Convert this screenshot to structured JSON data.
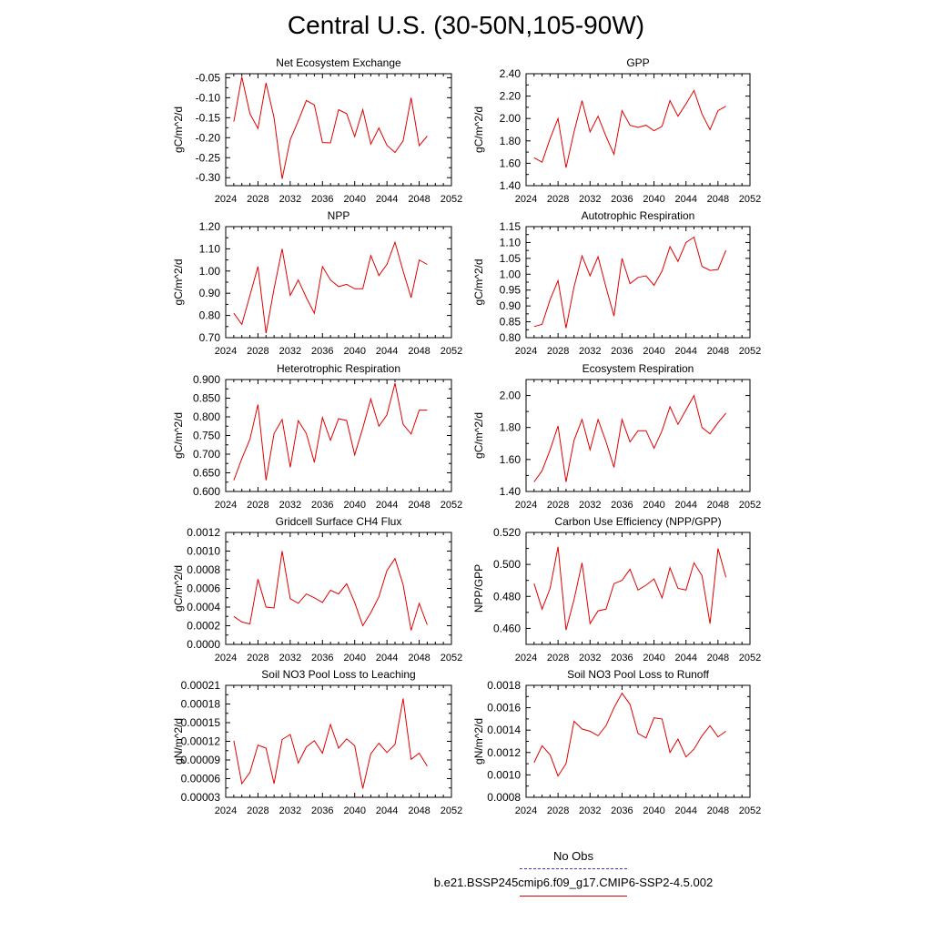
{
  "title": "Central U.S. (30-50N,105-90W)",
  "legend": {
    "obs_label": "No Obs",
    "obs_color": "#3b3bd6",
    "case_label": "b.e21.BSSP245cmip6.f09_g17.CMIP6-SSP2-4.5.002",
    "case_color": "#e00000"
  },
  "chart_data": [
    {
      "type": "line",
      "title": "Net Ecosystem Exchange",
      "ylabel": "gC/m^2/d",
      "xlim": [
        2024,
        2052
      ],
      "xticks": [
        "2024",
        "2028",
        "2032",
        "2036",
        "2040",
        "2044",
        "2048",
        "2052"
      ],
      "ylim": [
        -0.32,
        -0.04
      ],
      "yticks": [
        "-0.05",
        "-0.10",
        "-0.15",
        "-0.20",
        "-0.25",
        "-0.30"
      ],
      "series": [
        {
          "x": [
            2025,
            2026,
            2027,
            2028,
            2029,
            2030,
            2031,
            2032,
            2033,
            2034,
            2035,
            2036,
            2037,
            2038,
            2039,
            2040,
            2041,
            2042,
            2043,
            2044,
            2045,
            2046,
            2047,
            2048,
            2049
          ],
          "y": [
            -0.16,
            -0.048,
            -0.14,
            -0.177,
            -0.063,
            -0.15,
            -0.303,
            -0.205,
            -0.158,
            -0.107,
            -0.118,
            -0.212,
            -0.213,
            -0.13,
            -0.14,
            -0.197,
            -0.13,
            -0.216,
            -0.176,
            -0.219,
            -0.237,
            -0.208,
            -0.1,
            -0.22,
            -0.196
          ]
        }
      ]
    },
    {
      "type": "line",
      "title": "GPP",
      "ylabel": "gC/m^2/d",
      "xlim": [
        2024,
        2052
      ],
      "xticks": [
        "2024",
        "2028",
        "2032",
        "2036",
        "2040",
        "2044",
        "2048",
        "2052"
      ],
      "ylim": [
        1.4,
        2.4
      ],
      "yticks": [
        "2.40",
        "2.20",
        "2.00",
        "1.80",
        "1.60",
        "1.40"
      ],
      "series": [
        {
          "x": [
            2025,
            2026,
            2027,
            2028,
            2029,
            2030,
            2031,
            2032,
            2033,
            2034,
            2035,
            2036,
            2037,
            2038,
            2039,
            2040,
            2041,
            2042,
            2043,
            2044,
            2045,
            2046,
            2047,
            2048,
            2049
          ],
          "y": [
            1.65,
            1.61,
            1.82,
            2.0,
            1.56,
            1.88,
            2.16,
            1.88,
            2.02,
            1.84,
            1.68,
            2.07,
            1.94,
            1.92,
            1.94,
            1.89,
            1.93,
            2.16,
            2.02,
            2.13,
            2.25,
            2.04,
            1.9,
            2.07,
            2.11
          ]
        }
      ]
    },
    {
      "type": "line",
      "title": "NPP",
      "ylabel": "gC/m^2/d",
      "xlim": [
        2024,
        2052
      ],
      "xticks": [
        "2024",
        "2028",
        "2032",
        "2036",
        "2040",
        "2044",
        "2048",
        "2052"
      ],
      "ylim": [
        0.7,
        1.2
      ],
      "yticks": [
        "1.20",
        "1.10",
        "1.00",
        "0.90",
        "0.80",
        "0.70"
      ],
      "series": [
        {
          "x": [
            2025,
            2026,
            2027,
            2028,
            2029,
            2030,
            2031,
            2032,
            2033,
            2034,
            2035,
            2036,
            2037,
            2038,
            2039,
            2040,
            2041,
            2042,
            2043,
            2044,
            2045,
            2046,
            2047,
            2048,
            2049
          ],
          "y": [
            0.81,
            0.76,
            0.89,
            1.02,
            0.72,
            0.92,
            1.1,
            0.89,
            0.96,
            0.88,
            0.81,
            1.02,
            0.96,
            0.93,
            0.94,
            0.92,
            0.92,
            1.07,
            0.98,
            1.03,
            1.13,
            1.0,
            0.88,
            1.05,
            1.03
          ]
        }
      ]
    },
    {
      "type": "line",
      "title": "Autotrophic Respiration",
      "ylabel": "gC/m^2/d",
      "xlim": [
        2024,
        2052
      ],
      "xticks": [
        "2024",
        "2028",
        "2032",
        "2036",
        "2040",
        "2044",
        "2048",
        "2052"
      ],
      "ylim": [
        0.8,
        1.15
      ],
      "yticks": [
        "1.15",
        "1.10",
        "1.05",
        "1.00",
        "0.95",
        "0.90",
        "0.85",
        "0.80"
      ],
      "series": [
        {
          "x": [
            2025,
            2026,
            2027,
            2028,
            2029,
            2030,
            2031,
            2032,
            2033,
            2034,
            2035,
            2036,
            2037,
            2038,
            2039,
            2040,
            2041,
            2042,
            2043,
            2044,
            2045,
            2046,
            2047,
            2048,
            2049
          ],
          "y": [
            0.835,
            0.842,
            0.92,
            0.98,
            0.83,
            0.96,
            1.058,
            0.995,
            1.055,
            0.958,
            0.868,
            1.05,
            0.97,
            0.99,
            0.995,
            0.965,
            1.01,
            1.087,
            1.04,
            1.1,
            1.117,
            1.025,
            1.012,
            1.015,
            1.075
          ]
        }
      ]
    },
    {
      "type": "line",
      "title": "Heterotrophic Respiration",
      "ylabel": "gC/m^2/d",
      "xlim": [
        2024,
        2052
      ],
      "xticks": [
        "2024",
        "2028",
        "2032",
        "2036",
        "2040",
        "2044",
        "2048",
        "2052"
      ],
      "ylim": [
        0.6,
        0.9
      ],
      "yticks": [
        "0.900",
        "0.850",
        "0.800",
        "0.750",
        "0.700",
        "0.650",
        "0.600"
      ],
      "series": [
        {
          "x": [
            2025,
            2026,
            2027,
            2028,
            2029,
            2030,
            2031,
            2032,
            2033,
            2034,
            2035,
            2036,
            2037,
            2038,
            2039,
            2040,
            2041,
            2042,
            2043,
            2044,
            2045,
            2046,
            2047,
            2048,
            2049
          ],
          "y": [
            0.63,
            0.688,
            0.74,
            0.833,
            0.63,
            0.755,
            0.793,
            0.665,
            0.79,
            0.755,
            0.678,
            0.798,
            0.737,
            0.795,
            0.79,
            0.698,
            0.77,
            0.848,
            0.775,
            0.805,
            0.89,
            0.78,
            0.754,
            0.818,
            0.818
          ]
        }
      ]
    },
    {
      "type": "line",
      "title": "Ecosystem Respiration",
      "ylabel": "gC/m^2/d",
      "xlim": [
        2024,
        2052
      ],
      "xticks": [
        "2024",
        "2028",
        "2032",
        "2036",
        "2040",
        "2044",
        "2048",
        "2052"
      ],
      "ylim": [
        1.4,
        2.1
      ],
      "yticks": [
        "2.00",
        "1.80",
        "1.60",
        "1.40"
      ],
      "series": [
        {
          "x": [
            2025,
            2026,
            2027,
            2028,
            2029,
            2030,
            2031,
            2032,
            2033,
            2034,
            2035,
            2036,
            2037,
            2038,
            2039,
            2040,
            2041,
            2042,
            2043,
            2044,
            2045,
            2046,
            2047,
            2048,
            2049
          ],
          "y": [
            1.46,
            1.53,
            1.66,
            1.81,
            1.46,
            1.72,
            1.85,
            1.66,
            1.85,
            1.71,
            1.55,
            1.85,
            1.71,
            1.78,
            1.78,
            1.67,
            1.78,
            1.93,
            1.82,
            1.91,
            2.0,
            1.8,
            1.76,
            1.83,
            1.89
          ]
        }
      ]
    },
    {
      "type": "line",
      "title": "Gridcell Surface CH4 Flux",
      "ylabel": "gC/m^2/d",
      "xlim": [
        2024,
        2052
      ],
      "xticks": [
        "2024",
        "2028",
        "2032",
        "2036",
        "2040",
        "2044",
        "2048",
        "2052"
      ],
      "ylim": [
        0.0,
        0.0012
      ],
      "yticks": [
        "0.0012",
        "0.0010",
        "0.0008",
        "0.0006",
        "0.0004",
        "0.0002",
        "0.0000"
      ],
      "series": [
        {
          "x": [
            2025,
            2026,
            2027,
            2028,
            2029,
            2030,
            2031,
            2032,
            2033,
            2034,
            2035,
            2036,
            2037,
            2038,
            2039,
            2040,
            2041,
            2042,
            2043,
            2044,
            2045,
            2046,
            2047,
            2048,
            2049
          ],
          "y": [
            0.0003,
            0.00024,
            0.00022,
            0.0007,
            0.0004,
            0.00039,
            0.001,
            0.00049,
            0.00044,
            0.00054,
            0.0005,
            0.00045,
            0.00058,
            0.00054,
            0.00065,
            0.00045,
            0.0002,
            0.00034,
            0.00051,
            0.00079,
            0.00092,
            0.00064,
            0.00015,
            0.00044,
            0.00021
          ]
        }
      ]
    },
    {
      "type": "line",
      "title": "Carbon Use Efficiency (NPP/GPP)",
      "ylabel": "NPP/GPP",
      "xlim": [
        2024,
        2052
      ],
      "xticks": [
        "2024",
        "2028",
        "2032",
        "2036",
        "2040",
        "2044",
        "2048",
        "2052"
      ],
      "ylim": [
        0.45,
        0.52
      ],
      "yticks": [
        "0.520",
        "0.500",
        "0.480",
        "0.460"
      ],
      "series": [
        {
          "x": [
            2025,
            2026,
            2027,
            2028,
            2029,
            2030,
            2031,
            2032,
            2033,
            2034,
            2035,
            2036,
            2037,
            2038,
            2039,
            2040,
            2041,
            2042,
            2043,
            2044,
            2045,
            2046,
            2047,
            2048,
            2049
          ],
          "y": [
            0.488,
            0.472,
            0.485,
            0.511,
            0.459,
            0.478,
            0.501,
            0.463,
            0.471,
            0.472,
            0.488,
            0.49,
            0.497,
            0.484,
            0.487,
            0.491,
            0.479,
            0.498,
            0.485,
            0.484,
            0.501,
            0.493,
            0.463,
            0.51,
            0.492
          ]
        }
      ]
    },
    {
      "type": "line",
      "title": "Soil NO3 Pool Loss to Leaching",
      "ylabel": "gN/m^2/d",
      "xlim": [
        2024,
        2052
      ],
      "xticks": [
        "2024",
        "2028",
        "2032",
        "2036",
        "2040",
        "2044",
        "2048",
        "2052"
      ],
      "ylim": [
        3e-05,
        0.00021
      ],
      "yticks": [
        "0.00021",
        "0.00018",
        "0.00015",
        "0.00012",
        "0.00009",
        "0.00006",
        "0.00003"
      ],
      "series": [
        {
          "x": [
            2025,
            2026,
            2027,
            2028,
            2029,
            2030,
            2031,
            2032,
            2033,
            2034,
            2035,
            2036,
            2037,
            2038,
            2039,
            2040,
            2041,
            2042,
            2043,
            2044,
            2045,
            2046,
            2047,
            2048,
            2049
          ],
          "y": [
            0.000121,
            5.2e-05,
            7e-05,
            0.000114,
            0.000109,
            5.2e-05,
            0.000123,
            0.000131,
            8.5e-05,
            0.000111,
            0.000121,
            0.000101,
            0.000147,
            0.000109,
            0.000124,
            0.000113,
            4.4e-05,
            0.0001,
            0.000117,
            0.000102,
            0.000115,
            0.000189,
            9.1e-05,
            0.000101,
            8e-05
          ]
        }
      ]
    },
    {
      "type": "line",
      "title": "Soil NO3 Pool Loss to Runoff",
      "ylabel": "gN/m^2/d",
      "xlim": [
        2024,
        2052
      ],
      "xticks": [
        "2024",
        "2028",
        "2032",
        "2036",
        "2040",
        "2044",
        "2048",
        "2052"
      ],
      "ylim": [
        0.0008,
        0.0018
      ],
      "yticks": [
        "0.0018",
        "0.0016",
        "0.0014",
        "0.0012",
        "0.0010",
        "0.0008"
      ],
      "series": [
        {
          "x": [
            2025,
            2026,
            2027,
            2028,
            2029,
            2030,
            2031,
            2032,
            2033,
            2034,
            2035,
            2036,
            2037,
            2038,
            2039,
            2040,
            2041,
            2042,
            2043,
            2044,
            2045,
            2046,
            2047,
            2048,
            2049
          ],
          "y": [
            0.00111,
            0.00126,
            0.00118,
            0.00099,
            0.0011,
            0.00148,
            0.00141,
            0.00139,
            0.00135,
            0.00144,
            0.0016,
            0.00173,
            0.00163,
            0.00137,
            0.00133,
            0.00151,
            0.0015,
            0.0012,
            0.00132,
            0.00116,
            0.00123,
            0.00135,
            0.00144,
            0.00134,
            0.00139
          ]
        }
      ]
    }
  ]
}
